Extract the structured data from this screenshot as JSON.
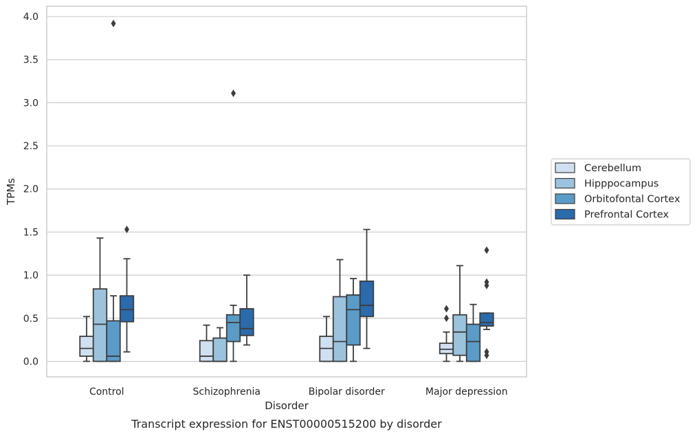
{
  "caption": "Transcript expression for ENST00000515200 by disorder",
  "chart_data": {
    "type": "box",
    "title": "",
    "xlabel": "Disorder",
    "ylabel": "TPMs",
    "ylim": [
      -0.18,
      4.12
    ],
    "yticks": [
      0.0,
      0.5,
      1.0,
      1.5,
      2.0,
      2.5,
      3.0,
      3.5,
      4.0
    ],
    "ytick_labels": [
      "0.0",
      "0.5",
      "1.0",
      "1.5",
      "2.0",
      "2.5",
      "3.0",
      "3.5",
      "4.0"
    ],
    "grid": "horizontal",
    "legend_position": "right",
    "categories": [
      "Control",
      "Schizophrenia",
      "Bipolar disorder",
      "Major depression"
    ],
    "series": [
      {
        "name": "Cerebellum",
        "color": "#d0e0f0",
        "boxes": [
          {
            "whislo": 0.0,
            "q1": 0.06,
            "med": 0.15,
            "q3": 0.29,
            "whishi": 0.52,
            "fliers": []
          },
          {
            "whislo": 0.0,
            "q1": 0.0,
            "med": 0.06,
            "q3": 0.24,
            "whishi": 0.42,
            "fliers": []
          },
          {
            "whislo": 0.0,
            "q1": 0.0,
            "med": 0.15,
            "q3": 0.29,
            "whishi": 0.52,
            "fliers": []
          },
          {
            "whislo": 0.0,
            "q1": 0.09,
            "med": 0.14,
            "q3": 0.21,
            "whishi": 0.34,
            "fliers": [
              0.5,
              0.61
            ]
          }
        ]
      },
      {
        "name": "Hipppocampus",
        "color": "#9bc3dd",
        "boxes": [
          {
            "whislo": 0.0,
            "q1": 0.0,
            "med": 0.43,
            "q3": 0.84,
            "whishi": 1.43,
            "fliers": []
          },
          {
            "whislo": 0.0,
            "q1": 0.0,
            "med": 0.0,
            "q3": 0.27,
            "whishi": 0.39,
            "fliers": []
          },
          {
            "whislo": 0.0,
            "q1": 0.0,
            "med": 0.23,
            "q3": 0.75,
            "whishi": 1.18,
            "fliers": []
          },
          {
            "whislo": 0.0,
            "q1": 0.07,
            "med": 0.34,
            "q3": 0.54,
            "whishi": 1.11,
            "fliers": []
          }
        ]
      },
      {
        "name": "Orbitofontal Cortex",
        "color": "#5a9bc8",
        "boxes": [
          {
            "whislo": 0.0,
            "q1": 0.0,
            "med": 0.06,
            "q3": 0.47,
            "whishi": 0.76,
            "fliers": [
              3.92
            ]
          },
          {
            "whislo": 0.0,
            "q1": 0.23,
            "med": 0.45,
            "q3": 0.54,
            "whishi": 0.65,
            "fliers": [
              3.11
            ]
          },
          {
            "whislo": 0.0,
            "q1": 0.19,
            "med": 0.6,
            "q3": 0.77,
            "whishi": 0.96,
            "fliers": []
          },
          {
            "whislo": 0.0,
            "q1": 0.0,
            "med": 0.23,
            "q3": 0.43,
            "whishi": 0.66,
            "fliers": []
          }
        ]
      },
      {
        "name": "Prefrontal Cortex",
        "color": "#2b6aab",
        "boxes": [
          {
            "whislo": 0.11,
            "q1": 0.46,
            "med": 0.6,
            "q3": 0.76,
            "whishi": 1.19,
            "fliers": [
              1.53
            ]
          },
          {
            "whislo": 0.19,
            "q1": 0.3,
            "med": 0.38,
            "q3": 0.61,
            "whishi": 1.0,
            "fliers": []
          },
          {
            "whislo": 0.15,
            "q1": 0.52,
            "med": 0.65,
            "q3": 0.93,
            "whishi": 1.53,
            "fliers": []
          },
          {
            "whislo": 0.37,
            "q1": 0.41,
            "med": 0.45,
            "q3": 0.56,
            "whishi": 0.56,
            "fliers": [
              0.07,
              0.11,
              0.88,
              0.92,
              1.29
            ]
          }
        ]
      }
    ]
  }
}
